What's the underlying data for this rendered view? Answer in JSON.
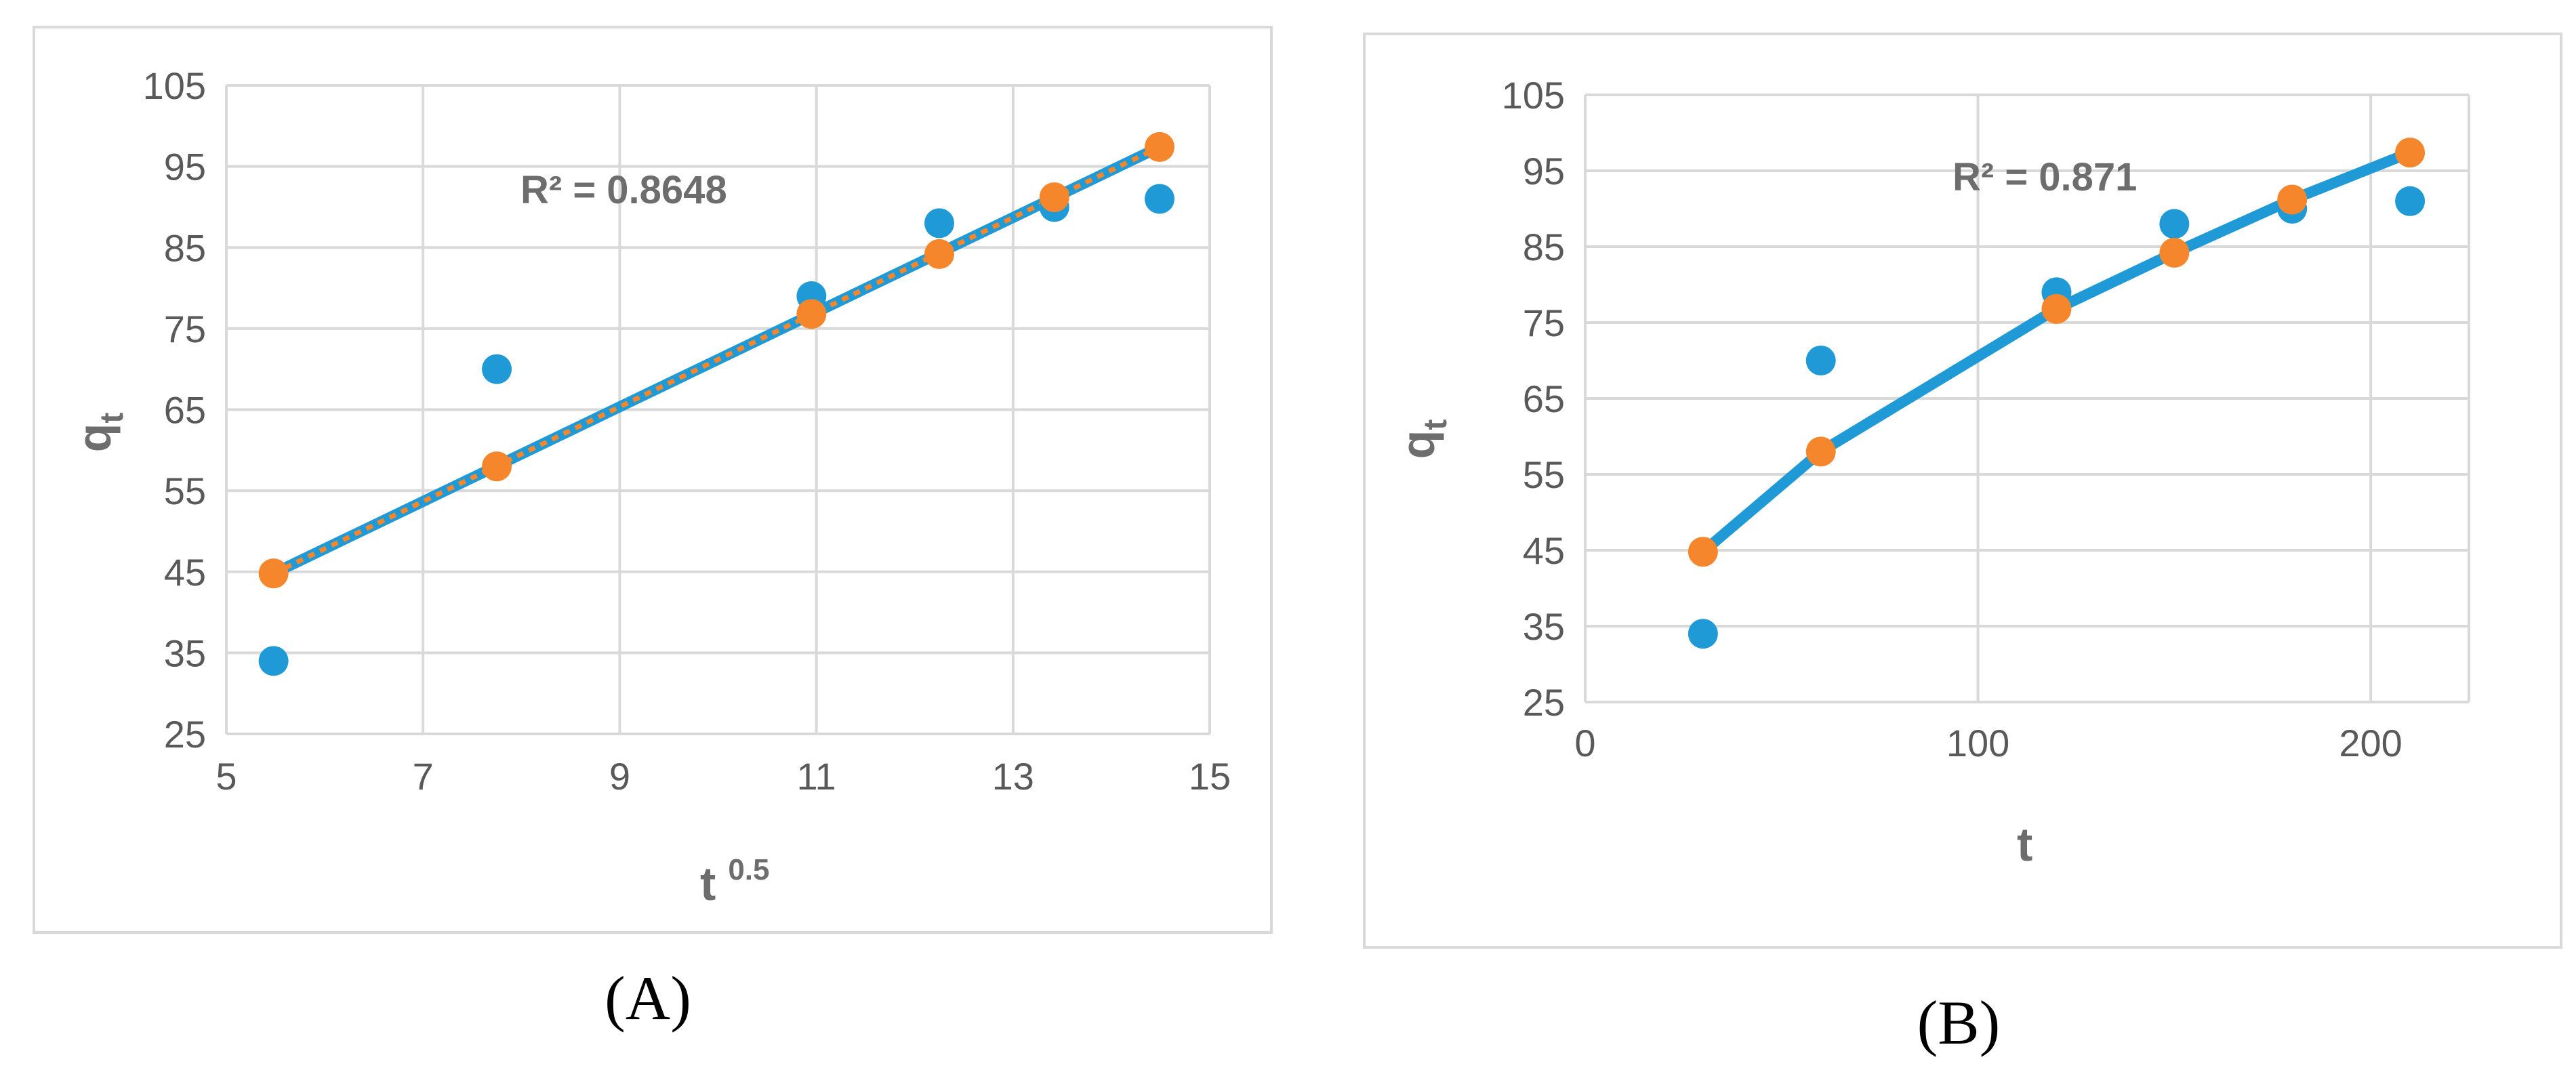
{
  "chart_data": [
    {
      "type": "scatter",
      "panel_label": "(A)",
      "xlabel": "t",
      "xlabel_superscript": "0.5",
      "ylabel": "q",
      "ylabel_subscript": "t",
      "xlim": [
        5,
        15
      ],
      "ylim": [
        25,
        105
      ],
      "x_ticks": [
        5,
        7,
        9,
        11,
        13,
        15
      ],
      "y_ticks": [
        25,
        35,
        45,
        55,
        65,
        75,
        85,
        95,
        105
      ],
      "grid": true,
      "annotation": "R² = 0.8648",
      "series": [
        {
          "kind": "points",
          "color": "#1f9ad6",
          "x": [
            5.48,
            7.75,
            10.95,
            12.25,
            13.42,
            14.49
          ],
          "y": [
            34,
            70,
            79,
            88,
            90,
            91
          ]
        },
        {
          "kind": "points",
          "color": "#f5862b",
          "x": [
            5.48,
            7.75,
            10.95,
            12.25,
            13.42,
            14.49
          ],
          "y": [
            44.8,
            58,
            76.8,
            84.2,
            91.2,
            97.4
          ]
        },
        {
          "kind": "line",
          "color": "#1f9ad6",
          "dashed_overlay_color": "#f5862b",
          "x": [
            5.48,
            14.49
          ],
          "y": [
            44.8,
            97.4
          ]
        }
      ]
    },
    {
      "type": "scatter",
      "panel_label": "(B)",
      "xlabel": "t",
      "ylabel": "q",
      "ylabel_subscript": "t",
      "xlim": [
        0,
        225
      ],
      "ylim": [
        25,
        105
      ],
      "x_ticks": [
        0,
        100,
        200
      ],
      "y_ticks": [
        25,
        35,
        45,
        55,
        65,
        75,
        85,
        95,
        105
      ],
      "grid": true,
      "annotation": "R² = 0.871",
      "series": [
        {
          "kind": "points",
          "color": "#1f9ad6",
          "x": [
            30,
            60,
            120,
            150,
            180,
            210
          ],
          "y": [
            34,
            70,
            79,
            88,
            90,
            91
          ]
        },
        {
          "kind": "points",
          "color": "#f5862b",
          "x": [
            30,
            60,
            120,
            150,
            180,
            210
          ],
          "y": [
            44.8,
            58,
            76.8,
            84.2,
            91.2,
            97.4
          ]
        },
        {
          "kind": "line",
          "color": "#1f9ad6",
          "x": [
            30,
            60,
            120,
            150,
            180,
            210
          ],
          "y": [
            44.8,
            58,
            76.8,
            84.2,
            91.2,
            97.4
          ]
        }
      ]
    }
  ]
}
